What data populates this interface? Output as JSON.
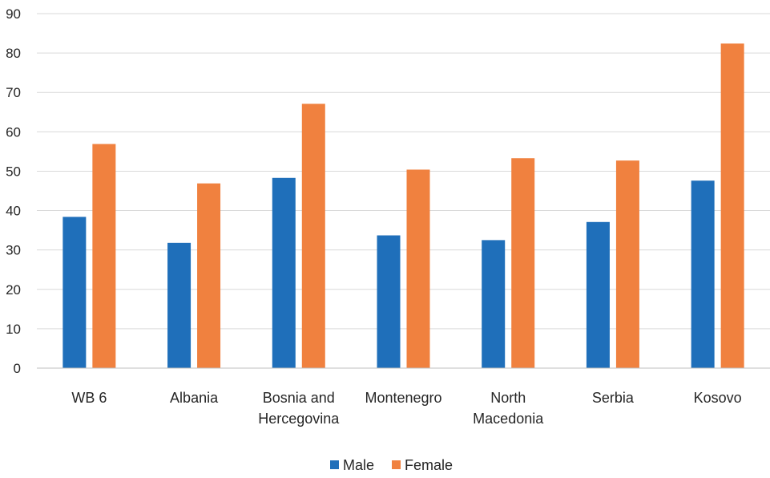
{
  "chart_data": {
    "type": "bar",
    "categories": [
      [
        "WB 6"
      ],
      [
        "Albania"
      ],
      [
        "Bosnia and",
        "Hercegovina"
      ],
      [
        "Montenegro"
      ],
      [
        "North",
        "Macedonia"
      ],
      [
        "Serbia"
      ],
      [
        "Kosovo"
      ]
    ],
    "series": [
      {
        "name": "Male",
        "color": "#1F6FBA",
        "values": [
          38.4,
          31.8,
          48.3,
          33.7,
          32.5,
          37.1,
          47.6
        ]
      },
      {
        "name": "Female",
        "color": "#F0813F",
        "values": [
          56.9,
          46.9,
          67.1,
          50.4,
          53.3,
          52.7,
          82.4
        ]
      }
    ],
    "ylim": [
      0,
      90
    ],
    "yticks": [
      0,
      10,
      20,
      30,
      40,
      50,
      60,
      70,
      80,
      90
    ],
    "grid": true,
    "legend": "bottom"
  }
}
